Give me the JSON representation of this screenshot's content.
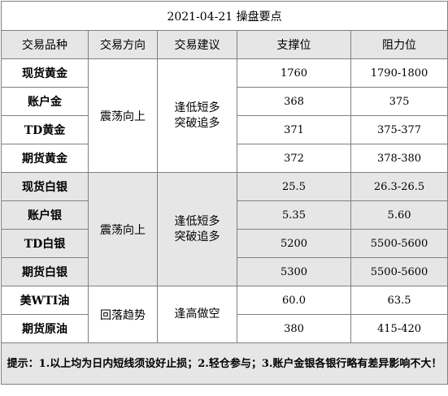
{
  "title": "2021-04-21 操盘要点",
  "headers": [
    "交易品种",
    "交易方向",
    "交易建议",
    "支撑位",
    "阻力位"
  ],
  "groups": [
    {
      "direction": "震荡向上",
      "advice_line1": "逢低短多",
      "advice_line2": "突破追多",
      "rows": [
        {
          "name": "现货黄金",
          "support": "1760",
          "resistance": "1790-1800"
        },
        {
          "name": "账户金",
          "support": "368",
          "resistance": "375"
        },
        {
          "name": "TD黄金",
          "support": "371",
          "resistance": "375-377"
        },
        {
          "name": "期货黄金",
          "support": "372",
          "resistance": "378-380"
        }
      ]
    },
    {
      "direction": "震荡向上",
      "advice_line1": "逢低短多",
      "advice_line2": "突破追多",
      "rows": [
        {
          "name": "现货白银",
          "support": "25.5",
          "resistance": "26.3-26.5"
        },
        {
          "name": "账户银",
          "support": "5.35",
          "resistance": "5.60"
        },
        {
          "name": "TD白银",
          "support": "5200",
          "resistance": "5500-5600"
        },
        {
          "name": "期货白银",
          "support": "5300",
          "resistance": "5500-5600"
        }
      ]
    },
    {
      "direction": "回落趋势",
      "advice_line1": "逢高做空",
      "rows": [
        {
          "name": "美WTI油",
          "support": "60.0",
          "resistance": "63.5"
        },
        {
          "name": "期货原油",
          "support": "380",
          "resistance": "415-420"
        }
      ]
    }
  ],
  "note": "提示：1.以上均为日内短线须设好止损；2.轻仓参与；3.账户金银各银行略有差异影响不大！"
}
